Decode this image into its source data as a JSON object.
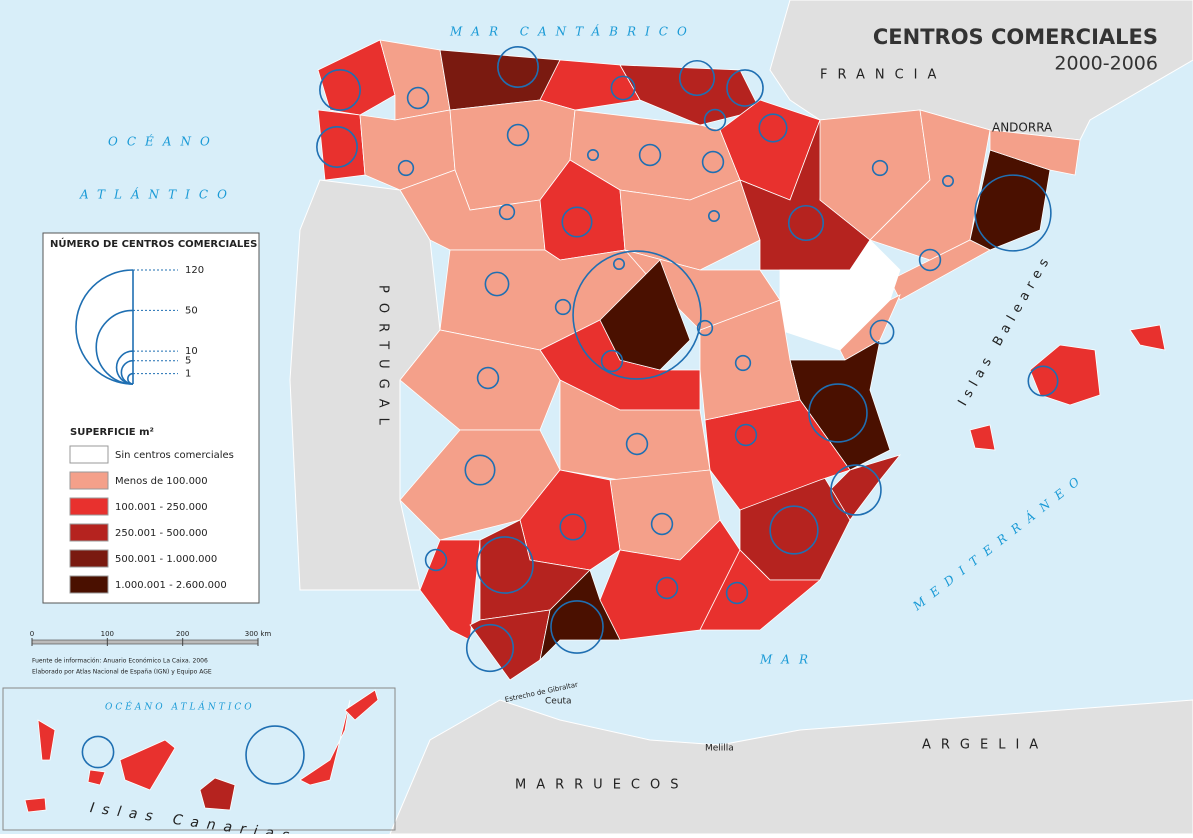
{
  "header": {
    "title": "CENTROS COMERCIALES",
    "subtitle": "2000-2006"
  },
  "labels": {
    "mar_cantabrico": "MAR CANTÁBRICO",
    "oceano": "OCÉANO",
    "atlantico": "ATLÁNTICO",
    "francia": "FRANCIA",
    "andorra": "ANDORRA",
    "portugal": "PORTUGAL",
    "baleares": "Islas Baleares",
    "mediterraneo": "MEDITERRÁNEO",
    "mar": "MAR",
    "estrecho": "Estrecho de Gibraltar",
    "ceuta": "Ceuta",
    "melilla": "Melilla",
    "argelia": "ARGELIA",
    "marruecos": "MARRUECOS",
    "oceano_atlantico": "OCÉANO ATLÁNTICO",
    "canarias": "Islas Canarias"
  },
  "circle_legend": {
    "title": "NÚMERO DE CENTROS COMERCIALES",
    "values": [
      120,
      50,
      10,
      5,
      1
    ],
    "color": "#1f6fb2"
  },
  "surface_legend": {
    "title": "SUPERFICIE m²",
    "items": [
      {
        "label": "Sin centros comerciales",
        "color": "#ffffff"
      },
      {
        "label": "Menos de 100.000",
        "color": "#f4a08a"
      },
      {
        "label": "100.001 - 250.000",
        "color": "#e8312e"
      },
      {
        "label": "250.001 - 500.000",
        "color": "#b5231f"
      },
      {
        "label": "500.001 - 1.000.000",
        "color": "#7a1a10"
      },
      {
        "label": "1.000.001 - 2.600.000",
        "color": "#4a1000"
      }
    ]
  },
  "circles": {
    "values": [
      151,
      53,
      31,
      23,
      21,
      29,
      25,
      20,
      12,
      11,
      15,
      15,
      15,
      11,
      7,
      8,
      5,
      4,
      4,
      4,
      2,
      1,
      4,
      4,
      1,
      2,
      5,
      1,
      2,
      2,
      4,
      2,
      2,
      1,
      4,
      5,
      4,
      8,
      4,
      4,
      6,
      4,
      4,
      4,
      4,
      8,
      9,
      31
    ]
  },
  "scale": {
    "xlim": [
      0,
      300
    ],
    "xticks": [
      0,
      100,
      200,
      {
        "value": 300,
        "label": "300 km"
      }
    ]
  },
  "source": [
    "Fuente de información: Anuario Económico La Caixa. 2006",
    "Elaborado por Atlas Nacional de España (IGN) y Equipo AGE"
  ]
}
